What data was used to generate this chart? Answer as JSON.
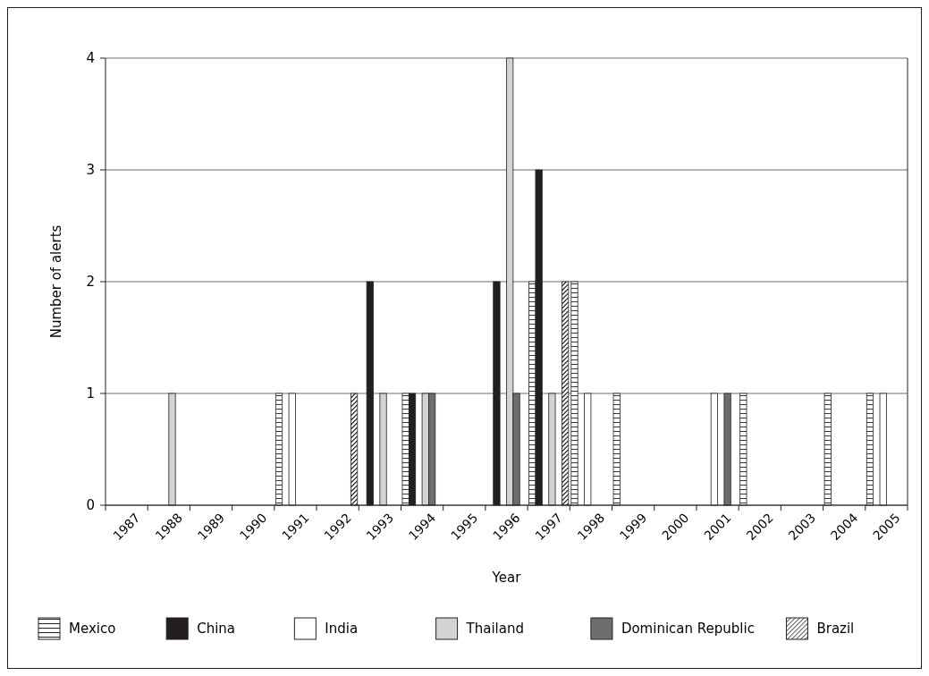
{
  "chart_data": {
    "type": "bar",
    "xlabel": "Year",
    "ylabel": "Number of alerts",
    "categories": [
      "1987",
      "1988",
      "1989",
      "1990",
      "1991",
      "1992",
      "1993",
      "1994",
      "1995",
      "1996",
      "1997",
      "1998",
      "1999",
      "2000",
      "2001",
      "2002",
      "2003",
      "2004",
      "2005"
    ],
    "series": [
      {
        "name": "Mexico",
        "color": "#ffffff",
        "values": [
          0,
          0,
          0,
          0,
          1,
          0,
          0,
          1,
          0,
          0,
          2,
          2,
          1,
          0,
          0,
          1,
          0,
          1,
          1
        ]
      },
      {
        "name": "China",
        "color": "#231f20",
        "values": [
          0,
          0,
          0,
          0,
          0,
          0,
          2,
          1,
          0,
          2,
          3,
          0,
          0,
          0,
          0,
          0,
          0,
          0,
          0
        ]
      },
      {
        "name": "India",
        "color": "#ffffff",
        "values": [
          0,
          0,
          0,
          0,
          1,
          0,
          0,
          0,
          0,
          0,
          0,
          1,
          0,
          0,
          1,
          0,
          0,
          0,
          1
        ]
      },
      {
        "name": "Thailand",
        "color": "#d1d3d4",
        "values": [
          0,
          1,
          0,
          0,
          0,
          0,
          1,
          1,
          0,
          4,
          1,
          0,
          0,
          0,
          0,
          0,
          0,
          0,
          0
        ]
      },
      {
        "name": "Dominican Republic",
        "color": "#6d6e71",
        "values": [
          0,
          0,
          0,
          0,
          0,
          0,
          0,
          1,
          0,
          1,
          0,
          0,
          0,
          0,
          1,
          0,
          0,
          0,
          0
        ]
      },
      {
        "name": "Brazil",
        "color": "#ffffff",
        "values": [
          0,
          0,
          0,
          0,
          0,
          1,
          0,
          0,
          0,
          0,
          2,
          0,
          0,
          0,
          0,
          0,
          0,
          0,
          0
        ]
      }
    ],
    "ylim": [
      0,
      4
    ],
    "yticks": [
      0,
      1,
      2,
      3,
      4
    ],
    "grid": "y",
    "legend": "bottom"
  }
}
